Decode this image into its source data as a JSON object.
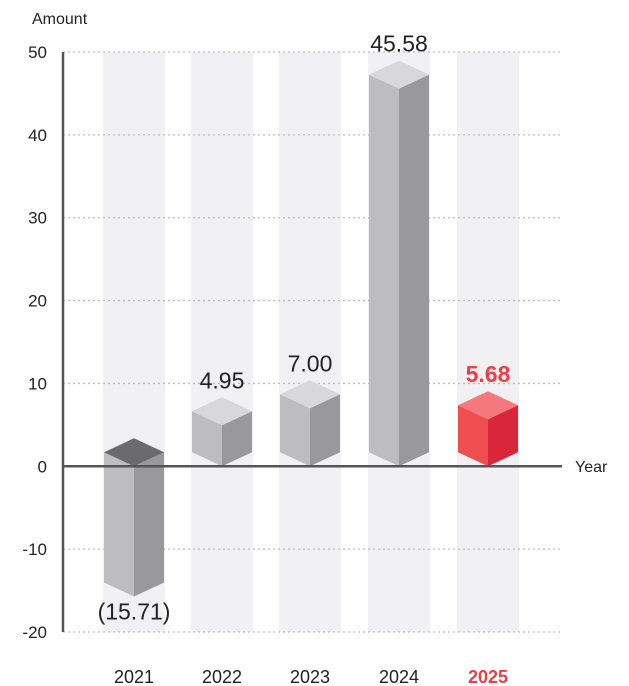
{
  "chart_data": {
    "type": "bar",
    "categories": [
      "2021",
      "2022",
      "2023",
      "2024",
      "2025"
    ],
    "values": [
      -15.71,
      4.95,
      7.0,
      45.58,
      5.68
    ],
    "value_labels": [
      "(15.71)",
      "4.95",
      "7.00",
      "45.58",
      "5.68"
    ],
    "ylabel": "Amount",
    "xlabel": "Year",
    "ylim": [
      -20,
      50
    ],
    "yticks": [
      "50",
      "40",
      "30",
      "20",
      "10",
      "0",
      "-10",
      "-20"
    ],
    "grid": "horizontal dotted",
    "highlight_index": 4,
    "colors": {
      "bar_front": "#bdbdc0",
      "bar_side": "#99999c",
      "bar_top": "#d8d8da",
      "highlight_front": "#ef4e50",
      "highlight_side": "#d9263a",
      "highlight_top": "#f4787c",
      "negative_top": "#6b6b6e",
      "column_band": "#f1f1f3",
      "axis": "#555555",
      "highlight_text": "#ee3e47"
    }
  }
}
